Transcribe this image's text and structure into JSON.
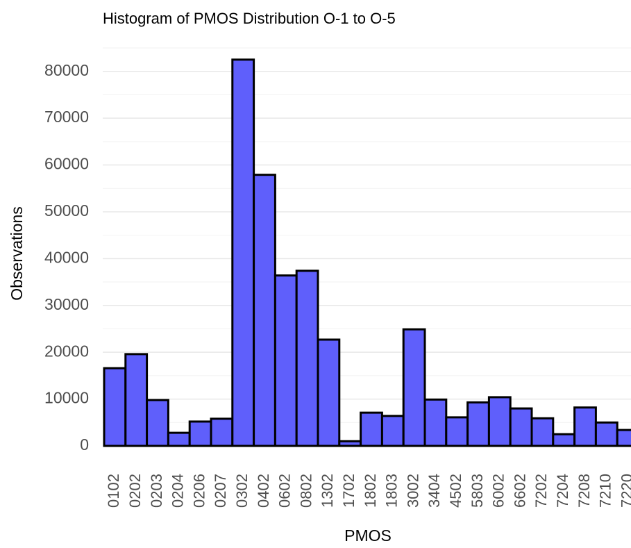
{
  "chart_data": {
    "type": "bar",
    "title": "Histogram of PMOS Distribution O-1 to O-5",
    "x_label": "PMOS",
    "y_label": "Observations",
    "categories": [
      "0102",
      "0202",
      "0203",
      "0204",
      "0206",
      "0207",
      "0302",
      "0402",
      "0602",
      "0802",
      "1302",
      "1702",
      "1802",
      "1803",
      "3002",
      "3404",
      "4502",
      "5803",
      "6002",
      "6602",
      "7202",
      "7204",
      "7208",
      "7210",
      "7220"
    ],
    "values": [
      16600,
      19600,
      9800,
      2800,
      5200,
      5800,
      82500,
      57900,
      36400,
      37400,
      22700,
      1000,
      7100,
      6400,
      24900,
      9900,
      6100,
      9300,
      10400,
      8000,
      5900,
      2500,
      8200,
      5000,
      3400
    ],
    "color": "#5f5ffb",
    "edge_color": "#000000",
    "ylim": [
      0,
      85000
    ],
    "yticks": [
      0,
      10000,
      20000,
      30000,
      40000,
      50000,
      60000,
      70000,
      80000
    ],
    "yticks_minor": [
      5000,
      15000,
      25000,
      35000,
      45000,
      55000,
      65000,
      75000,
      85000
    ],
    "grid": true
  }
}
